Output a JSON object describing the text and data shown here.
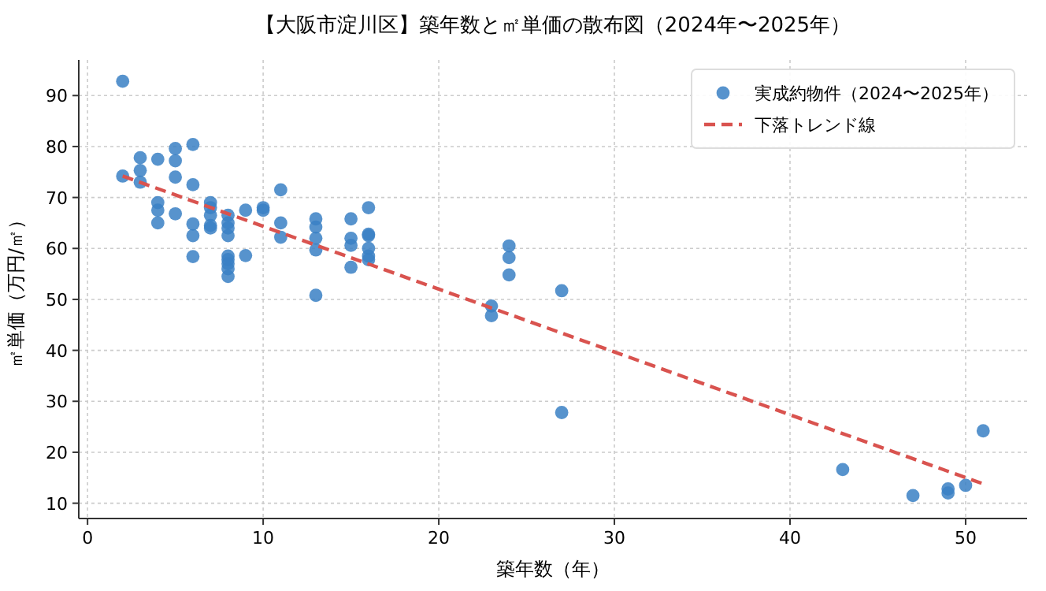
{
  "chart_data": {
    "type": "scatter",
    "title": "【大阪市淀川区】築年数と㎡単価の散布図（2024年〜2025年）",
    "xlabel": "築年数（年）",
    "ylabel": "㎡単価（万円/㎡）",
    "xlim": [
      -0.5,
      53.5
    ],
    "ylim": [
      7,
      97
    ],
    "xticks": [
      0,
      10,
      20,
      30,
      40,
      50
    ],
    "yticks": [
      10,
      20,
      30,
      40,
      50,
      60,
      70,
      80,
      90
    ],
    "grid": true,
    "legend": "top right",
    "series": [
      {
        "name": "実成約物件（2024〜2025年）",
        "color": "#3a80c4",
        "marker": "circle",
        "x": [
          2,
          2,
          3,
          3,
          3,
          4,
          4,
          4,
          4,
          5,
          5,
          5,
          5,
          6,
          6,
          6,
          6,
          6,
          7,
          7,
          7,
          7,
          7,
          8,
          8,
          8,
          8,
          8,
          8,
          8,
          8,
          8,
          9,
          9,
          10,
          10,
          11,
          11,
          11,
          13,
          13,
          13,
          13,
          13,
          15,
          15,
          15,
          15,
          16,
          16,
          16,
          16,
          16,
          16,
          23,
          23,
          24,
          24,
          24,
          27,
          27,
          43,
          47,
          49,
          49,
          50,
          51
        ],
        "values": [
          92.8,
          74.2,
          77.8,
          75.3,
          73,
          77.5,
          69,
          67.5,
          65,
          79.6,
          77.2,
          74,
          66.8,
          80.4,
          72.5,
          64.8,
          62.5,
          58.4,
          69,
          68,
          66.5,
          64.5,
          64,
          66.5,
          65,
          64,
          62.5,
          58.5,
          57.8,
          57,
          56,
          54.5,
          67.5,
          58.6,
          68,
          67.5,
          71.5,
          65,
          62.2,
          65.8,
          64.2,
          62,
          59.7,
          50.8,
          65.8,
          62,
          60.6,
          56.3,
          68,
          62.8,
          62.5,
          60,
          58.5,
          57.8,
          48.7,
          46.8,
          60.5,
          58.2,
          54.8,
          51.7,
          27.8,
          16.6,
          11.5,
          12.8,
          12,
          13.5,
          24.2
        ]
      },
      {
        "name": "下落トレンド線",
        "type": "line",
        "color": "#d9534f",
        "line_style": "dashed",
        "marker": "none",
        "x": [
          2,
          51
        ],
        "values": [
          74.2,
          13.8
        ]
      }
    ]
  }
}
